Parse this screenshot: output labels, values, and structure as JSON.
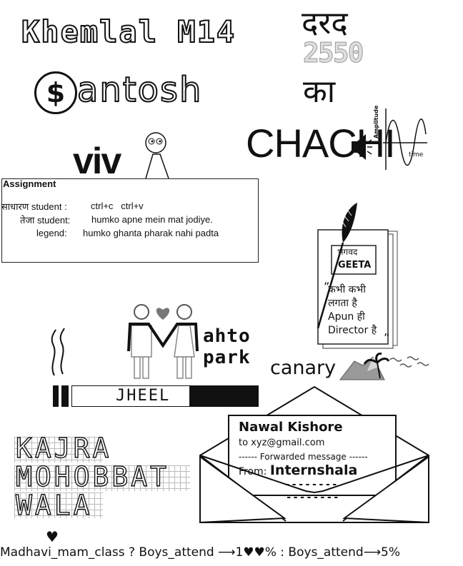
{
  "khemlal": "Khemlal M14",
  "hindi_top": "दरद",
  "digits": "2550",
  "hindi_ka": "का",
  "santosh_symbol": "$",
  "santosh": "antosh",
  "chachi": "CHACHI",
  "amplitude_label": "Amplitude",
  "time_label": "time",
  "viv": "viv",
  "assignment": {
    "title": "Assignment",
    "row1_left": "साधारण student :",
    "row1_right": "ctrl+c   ctrl+v",
    "row2_left": "तेजा student:",
    "row2_right": "humko apne mein mat jodiye.",
    "row3_left": "legend:",
    "row3_right": "humko ghanta pharak nahi padta"
  },
  "geeta": {
    "line1": "भगवद",
    "line2": "GEETA",
    "quote1": "कभी कभी",
    "quote2": "लगता है",
    "quote3": "Apun ही",
    "quote4": "Director है"
  },
  "mahto_line1": "ahto",
  "mahto_line2": "park",
  "canary": "canary",
  "jheel": "JHEEL",
  "kajra": [
    "KAJRA",
    "MOHOBBAT",
    "WALA"
  ],
  "letter": {
    "name": "Nawal Kishore",
    "to": "to  xyz@gmail.com",
    "forwarded": "------ Forwarded message ------",
    "from_label": "From:",
    "from_value": "Internshala",
    "dash1": "--------",
    "dash2": "--------"
  },
  "footer": "Madhavi_mam_class ? Boys_attend ⟶1♥♥% : Boys_attend⟶5%"
}
